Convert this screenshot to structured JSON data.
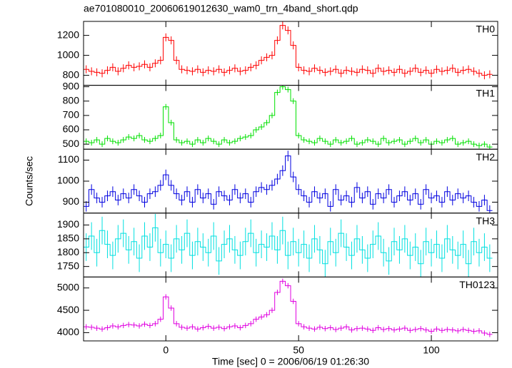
{
  "chart_data": {
    "type": "line",
    "title": "ae701080010_20060619012630_wam0_trn_4band_short.qdp",
    "x_label": "Time [sec] 0 = 2006/06/19 01:26:30",
    "y_label": "Counts/sec",
    "xlim": [
      -31,
      125
    ],
    "xticks": [
      0,
      50,
      100
    ],
    "x": [
      -30,
      -28,
      -26,
      -24,
      -22,
      -20,
      -18,
      -16,
      -14,
      -12,
      -10,
      -8,
      -6,
      -4,
      -2,
      0,
      2,
      4,
      6,
      8,
      10,
      12,
      14,
      16,
      18,
      20,
      22,
      24,
      26,
      28,
      30,
      32,
      34,
      36,
      38,
      40,
      42,
      44,
      46,
      48,
      50,
      52,
      54,
      56,
      58,
      60,
      62,
      64,
      66,
      68,
      70,
      72,
      74,
      76,
      78,
      80,
      82,
      84,
      86,
      88,
      90,
      92,
      94,
      96,
      98,
      100,
      102,
      104,
      106,
      108,
      110,
      112,
      114,
      116,
      118,
      120,
      122
    ],
    "panels": [
      {
        "name": "TH0",
        "color": "#ff0000",
        "error": 40,
        "ylim": [
          700,
          1340
        ],
        "yticks": [
          800,
          1000,
          1200
        ],
        "values": [
          860,
          840,
          830,
          820,
          850,
          880,
          840,
          870,
          900,
          880,
          890,
          910,
          880,
          920,
          950,
          1180,
          1150,
          950,
          860,
          850,
          840,
          860,
          830,
          850,
          840,
          860,
          830,
          850,
          870,
          840,
          850,
          880,
          900,
          950,
          980,
          1000,
          1150,
          1300,
          1250,
          1100,
          880,
          850,
          840,
          870,
          850,
          830,
          840,
          860,
          820,
          850,
          840,
          830,
          860,
          850,
          820,
          870,
          840,
          850,
          830,
          860,
          820,
          840,
          870,
          830,
          850,
          820,
          860,
          840,
          850,
          870,
          830,
          850,
          860,
          840,
          820,
          800,
          810
        ]
      },
      {
        "name": "TH1",
        "color": "#00e000",
        "error": 20,
        "ylim": [
          465,
          910
        ],
        "yticks": [
          500,
          600,
          700,
          800,
          900
        ],
        "values": [
          520,
          510,
          530,
          500,
          540,
          520,
          510,
          530,
          550,
          540,
          560,
          530,
          520,
          540,
          560,
          760,
          650,
          530,
          510,
          520,
          500,
          530,
          510,
          540,
          520,
          500,
          530,
          510,
          520,
          540,
          550,
          560,
          600,
          620,
          650,
          700,
          860,
          900,
          880,
          800,
          560,
          530,
          520,
          510,
          540,
          520,
          500,
          530,
          510,
          520,
          540,
          500,
          510,
          530,
          520,
          500,
          540,
          510,
          520,
          530,
          500,
          520,
          540,
          510,
          530,
          500,
          520,
          510,
          530,
          540,
          500,
          510,
          520,
          500,
          490,
          500,
          480
        ]
      },
      {
        "name": "TH2",
        "color": "#0000e0",
        "error": 25,
        "ylim": [
          848,
          1152
        ],
        "yticks": [
          900,
          1000,
          1100
        ],
        "values": [
          880,
          960,
          920,
          900,
          930,
          950,
          910,
          940,
          920,
          960,
          930,
          900,
          940,
          950,
          980,
          1030,
          980,
          940,
          910,
          950,
          900,
          960,
          920,
          940,
          890,
          950,
          930,
          910,
          960,
          920,
          940,
          900,
          950,
          970,
          960,
          980,
          1010,
          1050,
          1120,
          1020,
          960,
          930,
          900,
          950,
          920,
          940,
          880,
          960,
          910,
          930,
          900,
          970,
          920,
          950,
          890,
          940,
          920,
          960,
          900,
          930,
          950,
          910,
          940,
          890,
          960,
          920,
          930,
          900,
          950,
          910,
          940,
          920,
          930,
          900,
          880,
          910,
          860
        ]
      },
      {
        "name": "TH3",
        "color": "#00e0e0",
        "error": 50,
        "ylim": [
          1712,
          1943
        ],
        "yticks": [
          1750,
          1800,
          1850,
          1900
        ],
        "values": [
          1820,
          1860,
          1800,
          1880,
          1830,
          1790,
          1850,
          1870,
          1810,
          1840,
          1780,
          1860,
          1820,
          1890,
          1800,
          1830,
          1780,
          1850,
          1810,
          1870,
          1790,
          1840,
          1820,
          1800,
          1860,
          1770,
          1830,
          1850,
          1810,
          1790,
          1840,
          1870,
          1800,
          1830,
          1820,
          1860,
          1810,
          1880,
          1790,
          1840,
          1800,
          1830,
          1780,
          1850,
          1810,
          1760,
          1840,
          1800,
          1870,
          1820,
          1790,
          1850,
          1810,
          1780,
          1830,
          1860,
          1800,
          1770,
          1840,
          1810,
          1850,
          1790,
          1820,
          1760,
          1840,
          1800,
          1830,
          1780,
          1850,
          1810,
          1790,
          1830,
          1760,
          1840,
          1800,
          1820,
          1780
        ]
      },
      {
        "name": "TH0123",
        "color": "#e000e0",
        "error": 60,
        "ylim": [
          3815,
          5245
        ],
        "yticks": [
          4000,
          4500,
          5000
        ],
        "values": [
          4130,
          4120,
          4100,
          4080,
          4110,
          4150,
          4130,
          4160,
          4180,
          4170,
          4150,
          4190,
          4160,
          4200,
          4300,
          4800,
          4550,
          4200,
          4120,
          4100,
          4130,
          4080,
          4110,
          4140,
          4100,
          4120,
          4090,
          4130,
          4150,
          4110,
          4160,
          4200,
          4300,
          4350,
          4400,
          4500,
          4900,
          5150,
          5050,
          4700,
          4200,
          4130,
          4100,
          4080,
          4120,
          4090,
          4110,
          4070,
          4100,
          4130,
          4060,
          4090,
          4100,
          4080,
          4050,
          4110,
          4070,
          4090,
          4060,
          4080,
          4100,
          4050,
          4070,
          4090,
          4060,
          4030,
          4080,
          4050,
          4070,
          4060,
          4040,
          4070,
          4050,
          4030,
          4040,
          3990,
          3960
        ]
      }
    ]
  }
}
